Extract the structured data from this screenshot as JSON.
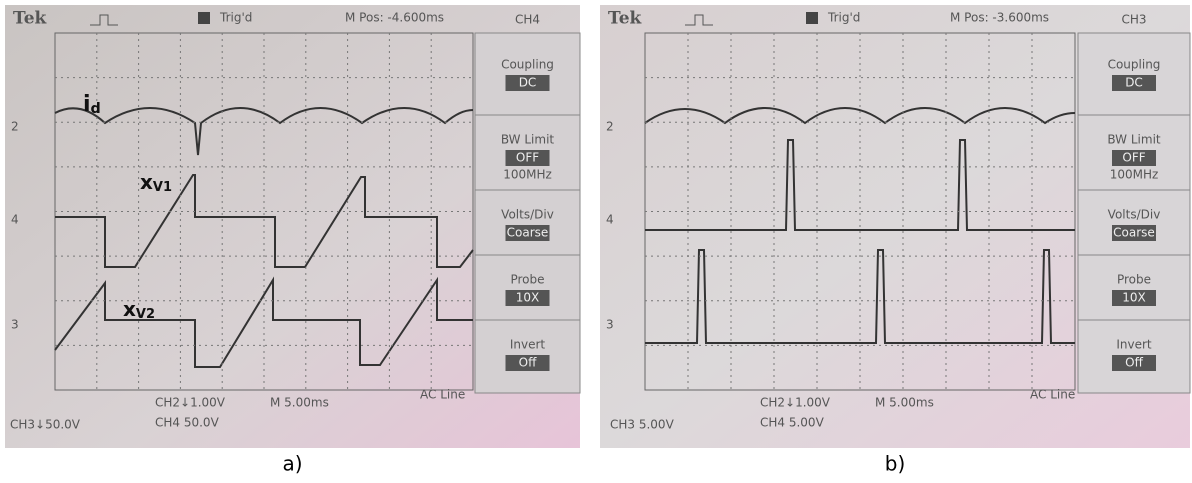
{
  "panels": [
    {
      "caption": "a)",
      "brand": "Tek",
      "trigger": "Trig'd",
      "position": "M Pos: -4.600ms",
      "channel": "CH4",
      "menu": [
        {
          "label": "Coupling",
          "value": "DC"
        },
        {
          "label": "BW Limit",
          "value": "OFF",
          "extra": "100MHz"
        },
        {
          "label": "Volts/Div",
          "value": "Coarse"
        },
        {
          "label": "Probe",
          "value": "10X"
        },
        {
          "label": "Invert",
          "value": "Off"
        }
      ],
      "markers": [
        "2",
        "4",
        "3"
      ],
      "ch2": "CH2↓1.00V",
      "timebase": "M 5.00ms",
      "source": "AC Line",
      "ch3": "CH3↓50.0V",
      "ch4": "CH4 50.0V",
      "traces": [
        {
          "name": "i",
          "sub": "d"
        },
        {
          "name": "x",
          "sub": "V1"
        },
        {
          "name": "x",
          "sub": "V2"
        }
      ]
    },
    {
      "caption": "b)",
      "brand": "Tek",
      "trigger": "Trig'd",
      "position": "M Pos: -3.600ms",
      "channel": "CH3",
      "menu": [
        {
          "label": "Coupling",
          "value": "DC"
        },
        {
          "label": "BW Limit",
          "value": "OFF",
          "extra": "100MHz"
        },
        {
          "label": "Volts/Div",
          "value": "Coarse"
        },
        {
          "label": "Probe",
          "value": "10X"
        },
        {
          "label": "Invert",
          "value": "Off"
        }
      ],
      "markers": [
        "2",
        "4",
        "3"
      ],
      "ch2": "CH2↓1.00V",
      "timebase": "M 5.00ms",
      "source": "AC Line",
      "ch3": "CH3 5.00V",
      "ch4": "CH4 5.00V"
    }
  ]
}
